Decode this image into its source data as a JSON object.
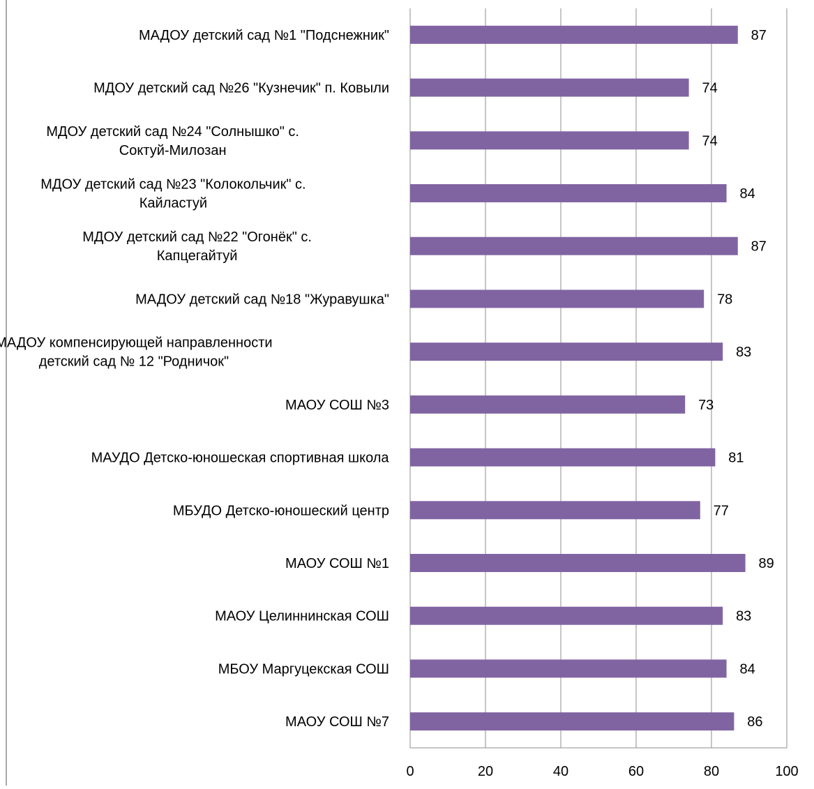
{
  "chart_data": {
    "type": "bar",
    "orientation": "horizontal",
    "title": "",
    "xlabel": "",
    "ylabel": "",
    "xlim": [
      0,
      100
    ],
    "x_ticks": [
      "0",
      "20",
      "40",
      "60",
      "80",
      "100"
    ],
    "grid": "vertical",
    "legend": "none",
    "categories": [
      [
        "МАДОУ детский сад №1  \"Подснежник\""
      ],
      [
        "МДОУ детский сад №26  \"Кузнечик\"  п. Ковыли"
      ],
      [
        "МДОУ детский сад №24  \"Солнышко\"  с.",
        "Соктуй-Милозан"
      ],
      [
        "МДОУ детский сад №23  \"Колокольчик\"  с.",
        "Кайластуй"
      ],
      [
        "МДОУ детский сад №22  \"Огонёк\"  с.",
        "Капцегайтуй"
      ],
      [
        "МАДОУ детский сад №18  \"Журавушка\""
      ],
      [
        "МАДОУ компенсирующей направленности",
        "детский сад № 12  \"Родничок\""
      ],
      [
        "МАОУ  СОШ №3"
      ],
      [
        "МАУДО  Детско-юношеская спортивная школа"
      ],
      [
        "МБУДО  Детско-юношеский центр"
      ],
      [
        "МАОУ  СОШ №1"
      ],
      [
        "МАОУ  Целиннинская СОШ"
      ],
      [
        "МБОУ  Маргуцекская СОШ"
      ],
      [
        "МАОУ  СОШ №7"
      ]
    ],
    "values": [
      87,
      74,
      74,
      84,
      87,
      78,
      83,
      73,
      81,
      77,
      89,
      83,
      84,
      86
    ],
    "data_labels": [
      "87",
      "74",
      "74",
      "84",
      "87",
      "78",
      "83",
      "73",
      "81",
      "77",
      "89",
      "83",
      "84",
      "86"
    ],
    "colors": {
      "bar": "#8064A2",
      "grid": "#8C8C8C",
      "axis": "#8C8C8C",
      "text": "#000000"
    }
  }
}
